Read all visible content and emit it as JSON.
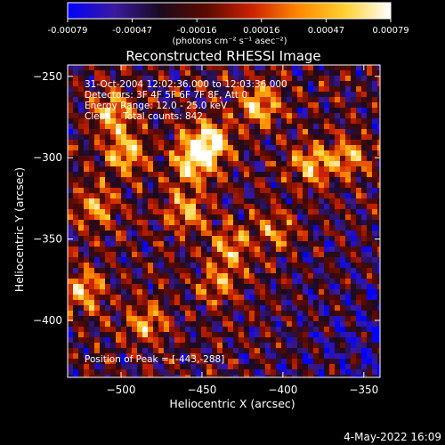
{
  "chart_data": {
    "type": "heatmap",
    "title": "Reconstructed RHESSI Image",
    "xlabel": "Heliocentric X (arcsec)",
    "ylabel": "Heliocentric Y (arcsec)",
    "xlim": [
      -533,
      -340
    ],
    "ylim": [
      -435,
      -243
    ],
    "x_ticks": [
      -500,
      -450,
      -400,
      -350
    ],
    "y_ticks": [
      -250,
      -300,
      -350,
      -400
    ],
    "colorbar": {
      "ticks": [
        "-0.00079",
        "-0.00047",
        "-0.00016",
        "0.00016",
        "0.00047",
        "0.00079"
      ],
      "unit_label": "(photons cm⁻² s⁻¹ asec⁻²)",
      "range": [
        -0.00079,
        0.00079
      ],
      "stops": [
        "#0000ff",
        "#3a1aa0",
        "#1a0a1f",
        "#5a0a00",
        "#cc2200",
        "#ff8800",
        "#ffd030",
        "#ffffff"
      ]
    },
    "annotations": {
      "time_range": "31-Oct-2004 12:02:36.000 to 12:03:36.000",
      "detectors": "Detectors: 3F 4F 5F 6F 7F 8F, Att 0",
      "energy_range": "Energy Range: 12.0 - 25.0 keV",
      "clean": "Clean    Total counts: 842.",
      "peak": "Position of Peak = [-443,-288]"
    },
    "bright_sources": [
      {
        "x": -445,
        "y": -290,
        "intensity": 1.0
      },
      {
        "x": -455,
        "y": -302,
        "intensity": 0.95
      },
      {
        "x": -415,
        "y": -268,
        "intensity": 0.85
      },
      {
        "x": -505,
        "y": -272,
        "intensity": 0.75
      },
      {
        "x": -497,
        "y": -297,
        "intensity": 0.8
      },
      {
        "x": -460,
        "y": -332,
        "intensity": 0.7
      },
      {
        "x": -432,
        "y": -355,
        "intensity": 0.65
      },
      {
        "x": -383,
        "y": -305,
        "intensity": 0.7
      },
      {
        "x": -360,
        "y": -300,
        "intensity": 0.7
      },
      {
        "x": -523,
        "y": -382,
        "intensity": 0.75
      },
      {
        "x": -485,
        "y": -402,
        "intensity": 0.65
      },
      {
        "x": -440,
        "y": -378,
        "intensity": 0.55
      },
      {
        "x": -515,
        "y": -330,
        "intensity": 0.6
      },
      {
        "x": -405,
        "y": -345,
        "intensity": 0.55
      }
    ]
  },
  "footer": {
    "timestamp": "4-May-2022 16:09"
  }
}
